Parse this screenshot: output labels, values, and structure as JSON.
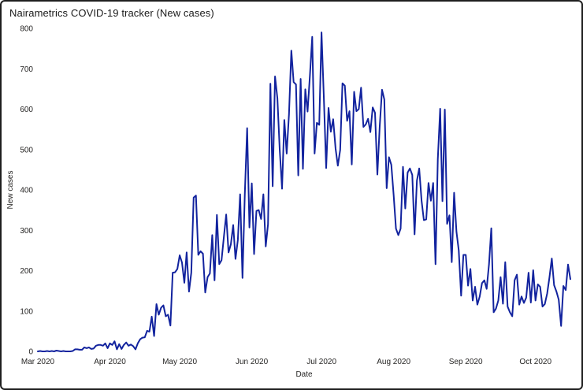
{
  "chart_data": {
    "type": "line",
    "title": "Nairametrics COVID-19 tracker (New cases)",
    "xlabel": "Date",
    "ylabel": "New cases",
    "ylim": [
      0,
      800
    ],
    "y_ticks": [
      0,
      100,
      200,
      300,
      400,
      500,
      600,
      700,
      800
    ],
    "x_tick_labels": [
      "Mar 2020",
      "Apr 2020",
      "May 2020",
      "Jun 2020",
      "Jul 2020",
      "Aug 2020",
      "Sep 2020",
      "Oct 2020"
    ],
    "x_tick_positions": [
      0,
      31,
      61,
      92,
      122,
      153,
      184,
      214
    ],
    "start_label": "Mar 2020",
    "grid": "off",
    "legend": "none",
    "line_color": "#12239E",
    "values": [
      0,
      1,
      0,
      0,
      1,
      0,
      1,
      0,
      2,
      1,
      0,
      1,
      0,
      0,
      0,
      1,
      5,
      5,
      4,
      4,
      10,
      8,
      10,
      6,
      7,
      14,
      16,
      16,
      14,
      20,
      8,
      20,
      16,
      25,
      5,
      18,
      6,
      16,
      22,
      14,
      17,
      13,
      5,
      20,
      30,
      34,
      35,
      51,
      49,
      86,
      38,
      117,
      91,
      108,
      114,
      87,
      91,
      64,
      195,
      196,
      204,
      238,
      220,
      170,
      245,
      148,
      195,
      381,
      386,
      239,
      248,
      242,
      146,
      184,
      193,
      288,
      176,
      338,
      216,
      226,
      284,
      339,
      245,
      265,
      313,
      229,
      276,
      389,
      182,
      387,
      553,
      307,
      416,
      241,
      348,
      350,
      328,
      389,
      260,
      315,
      663,
      409,
      681,
      627,
      501,
      403,
      573,
      490,
      587,
      745,
      667,
      661,
      436,
      675,
      452,
      649,
      594,
      684,
      779,
      490,
      566,
      561,
      790,
      626,
      454,
      603,
      544,
      575,
      503,
      460,
      499,
      664,
      658,
      571,
      595,
      463,
      643,
      595,
      600,
      653,
      556,
      562,
      576,
      543,
      604,
      591,
      438,
      555,
      648,
      624,
      404,
      481,
      462,
      386,
      304,
      288,
      304,
      457,
      354,
      443,
      453,
      437,
      290,
      423,
      453,
      373,
      325,
      327,
      417,
      373,
      417,
      216,
      476,
      601,
      372,
      599,
      316,
      337,
      221,
      393,
      296,
      250,
      138,
      239,
      239,
      163,
      204,
      126,
      160,
      116,
      136,
      169,
      176,
      155,
      216,
      305,
      97,
      106,
      126,
      184,
      118,
      221,
      111,
      97,
      87,
      176,
      190,
      116,
      136,
      120,
      133,
      195,
      121,
      201,
      126,
      166,
      160,
      111,
      117,
      143,
      183,
      230,
      164,
      148,
      128,
      63,
      162,
      152,
      215,
      179
    ]
  }
}
